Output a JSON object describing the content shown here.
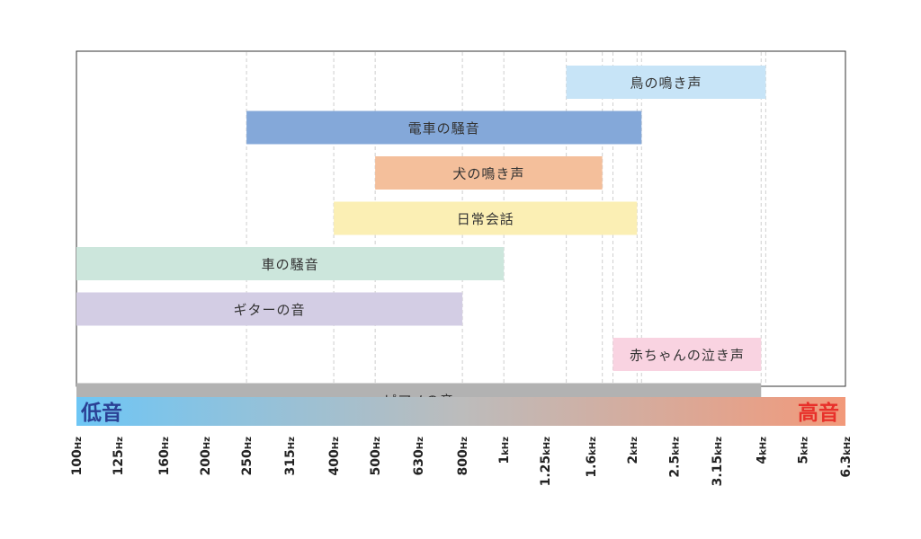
{
  "chart_data": {
    "type": "range-bar",
    "frequency_ticks": [
      {
        "value": 100,
        "label": "100Hz"
      },
      {
        "value": 125,
        "label": "125Hz"
      },
      {
        "value": 160,
        "label": "160Hz"
      },
      {
        "value": 200,
        "label": "200Hz"
      },
      {
        "value": 250,
        "label": "250Hz"
      },
      {
        "value": 315,
        "label": "315Hz"
      },
      {
        "value": 400,
        "label": "400Hz"
      },
      {
        "value": 500,
        "label": "500Hz"
      },
      {
        "value": 630,
        "label": "630Hz"
      },
      {
        "value": 800,
        "label": "800Hz"
      },
      {
        "value": 1000,
        "label": "1kHz"
      },
      {
        "value": 1250,
        "label": "1.25kHz"
      },
      {
        "value": 1600,
        "label": "1.6kHz"
      },
      {
        "value": 2000,
        "label": "2kHz"
      },
      {
        "value": 2500,
        "label": "2.5kHz"
      },
      {
        "value": 3150,
        "label": "3.15kHz"
      },
      {
        "value": 4000,
        "label": "4kHz"
      },
      {
        "value": 5000,
        "label": "5kHz"
      },
      {
        "value": 6300,
        "label": "6.3kHz"
      }
    ],
    "bars": [
      {
        "label": "鳥の鳴き声",
        "from": 1400,
        "to": 4100,
        "color": "#c7e4f7"
      },
      {
        "label": "電車の騒音",
        "from": 250,
        "to": 2100,
        "color": "#84a8d9"
      },
      {
        "label": "犬の鳴き声",
        "from": 500,
        "to": 1700,
        "color": "#f4bf9b"
      },
      {
        "label": "日常会話",
        "from": 400,
        "to": 2050,
        "color": "#fbefb4"
      },
      {
        "label": "車の騒音",
        "from": 100,
        "to": 1000,
        "color": "#cce6dc"
      },
      {
        "label": "ギターの音",
        "from": 100,
        "to": 800,
        "color": "#d3cde4"
      },
      {
        "label": "赤ちゃんの泣き声",
        "from": 1800,
        "to": 4000,
        "color": "#f9d3e1"
      },
      {
        "label": "ピアノの音",
        "from": 100,
        "to": 4000,
        "color": "#b2b2b2"
      }
    ],
    "scale_bar": {
      "low_label": "低音",
      "high_label": "高音",
      "low_color": "#6ec6f5",
      "high_color": "#f2997a",
      "low_text_color": "#2a3f94",
      "high_text_color": "#e8302a"
    }
  }
}
